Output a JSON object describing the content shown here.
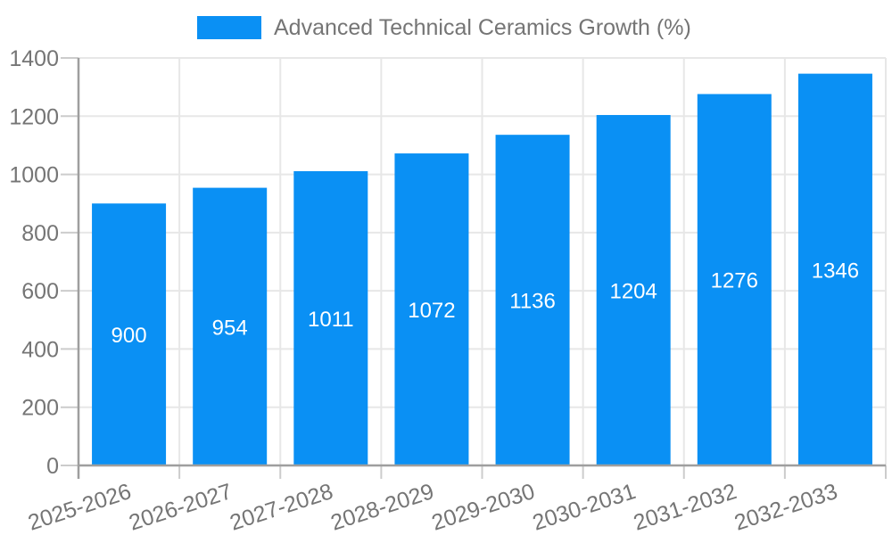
{
  "legend": {
    "label": "Advanced Technical Ceramics Growth (%)"
  },
  "colors": {
    "bar": "#0a90f4",
    "axis_text": "#757575",
    "grid": "#e7e7e7",
    "tick": "#cccccc",
    "axis_line": "#9e9e9e",
    "value_label": "#ffffff",
    "background": "#ffffff"
  },
  "chart_data": {
    "type": "bar",
    "title": "",
    "legend_entries": [
      "Advanced Technical Ceramics Growth (%)"
    ],
    "legend_position": "top",
    "categories": [
      "2025-2026",
      "2026-2027",
      "2027-2028",
      "2028-2029",
      "2029-2030",
      "2030-2031",
      "2031-2032",
      "2032-2033"
    ],
    "values": [
      900,
      954,
      1011,
      1072,
      1136,
      1204,
      1276,
      1346
    ],
    "xlabel": "",
    "ylabel": "",
    "ylim": [
      0,
      1400
    ],
    "yticks": [
      0,
      200,
      400,
      600,
      800,
      1000,
      1200,
      1400
    ],
    "grid": true,
    "value_labels_position": "inside-center",
    "x_tick_rotation_deg": -18
  }
}
